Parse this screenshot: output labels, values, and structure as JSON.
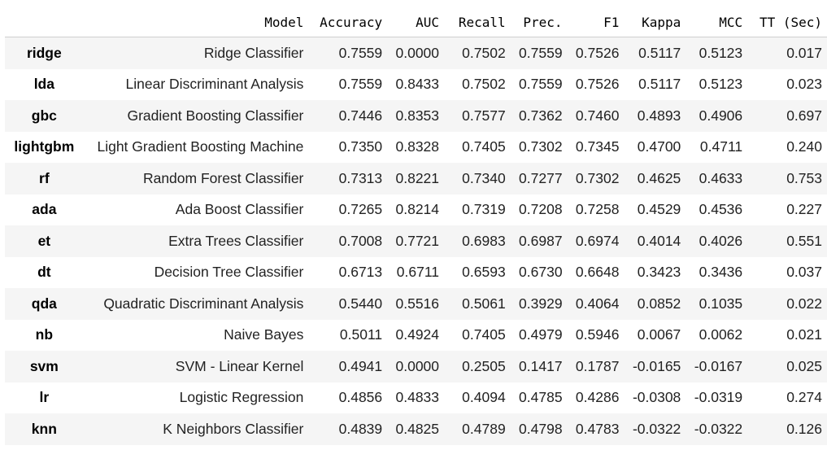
{
  "columns": [
    "",
    "Model",
    "Accuracy",
    "AUC",
    "Recall",
    "Prec.",
    "F1",
    "Kappa",
    "MCC",
    "TT (Sec)"
  ],
  "rows": [
    {
      "id": "ridge",
      "model": "Ridge Classifier",
      "accuracy": "0.7559",
      "auc": "0.0000",
      "recall": "0.7502",
      "prec": "0.7559",
      "f1": "0.7526",
      "kappa": "0.5117",
      "mcc": "0.5123",
      "tt": "0.017"
    },
    {
      "id": "lda",
      "model": "Linear Discriminant Analysis",
      "accuracy": "0.7559",
      "auc": "0.8433",
      "recall": "0.7502",
      "prec": "0.7559",
      "f1": "0.7526",
      "kappa": "0.5117",
      "mcc": "0.5123",
      "tt": "0.023"
    },
    {
      "id": "gbc",
      "model": "Gradient Boosting Classifier",
      "accuracy": "0.7446",
      "auc": "0.8353",
      "recall": "0.7577",
      "prec": "0.7362",
      "f1": "0.7460",
      "kappa": "0.4893",
      "mcc": "0.4906",
      "tt": "0.697"
    },
    {
      "id": "lightgbm",
      "model": "Light Gradient Boosting Machine",
      "accuracy": "0.7350",
      "auc": "0.8328",
      "recall": "0.7405",
      "prec": "0.7302",
      "f1": "0.7345",
      "kappa": "0.4700",
      "mcc": "0.4711",
      "tt": "0.240"
    },
    {
      "id": "rf",
      "model": "Random Forest Classifier",
      "accuracy": "0.7313",
      "auc": "0.8221",
      "recall": "0.7340",
      "prec": "0.7277",
      "f1": "0.7302",
      "kappa": "0.4625",
      "mcc": "0.4633",
      "tt": "0.753"
    },
    {
      "id": "ada",
      "model": "Ada Boost Classifier",
      "accuracy": "0.7265",
      "auc": "0.8214",
      "recall": "0.7319",
      "prec": "0.7208",
      "f1": "0.7258",
      "kappa": "0.4529",
      "mcc": "0.4536",
      "tt": "0.227"
    },
    {
      "id": "et",
      "model": "Extra Trees Classifier",
      "accuracy": "0.7008",
      "auc": "0.7721",
      "recall": "0.6983",
      "prec": "0.6987",
      "f1": "0.6974",
      "kappa": "0.4014",
      "mcc": "0.4026",
      "tt": "0.551"
    },
    {
      "id": "dt",
      "model": "Decision Tree Classifier",
      "accuracy": "0.6713",
      "auc": "0.6711",
      "recall": "0.6593",
      "prec": "0.6730",
      "f1": "0.6648",
      "kappa": "0.3423",
      "mcc": "0.3436",
      "tt": "0.037"
    },
    {
      "id": "qda",
      "model": "Quadratic Discriminant Analysis",
      "accuracy": "0.5440",
      "auc": "0.5516",
      "recall": "0.5061",
      "prec": "0.3929",
      "f1": "0.4064",
      "kappa": "0.0852",
      "mcc": "0.1035",
      "tt": "0.022"
    },
    {
      "id": "nb",
      "model": "Naive Bayes",
      "accuracy": "0.5011",
      "auc": "0.4924",
      "recall": "0.7405",
      "prec": "0.4979",
      "f1": "0.5946",
      "kappa": "0.0067",
      "mcc": "0.0062",
      "tt": "0.021"
    },
    {
      "id": "svm",
      "model": "SVM - Linear Kernel",
      "accuracy": "0.4941",
      "auc": "0.0000",
      "recall": "0.2505",
      "prec": "0.1417",
      "f1": "0.1787",
      "kappa": "-0.0165",
      "mcc": "-0.0167",
      "tt": "0.025"
    },
    {
      "id": "lr",
      "model": "Logistic Regression",
      "accuracy": "0.4856",
      "auc": "0.4833",
      "recall": "0.4094",
      "prec": "0.4785",
      "f1": "0.4286",
      "kappa": "-0.0308",
      "mcc": "-0.0319",
      "tt": "0.274"
    },
    {
      "id": "knn",
      "model": "K Neighbors Classifier",
      "accuracy": "0.4839",
      "auc": "0.4825",
      "recall": "0.4789",
      "prec": "0.4798",
      "f1": "0.4783",
      "kappa": "-0.0322",
      "mcc": "-0.0322",
      "tt": "0.126"
    }
  ]
}
